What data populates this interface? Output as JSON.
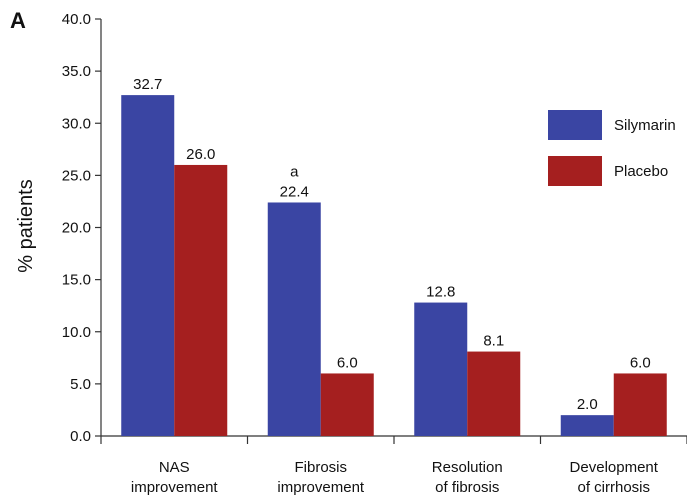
{
  "panel_label": "A",
  "chart_data": {
    "type": "bar",
    "title": "",
    "xlabel": "",
    "ylabel": "% patients",
    "ylim": [
      0,
      40
    ],
    "yticks": [
      "0.0",
      "5.0",
      "10.0",
      "15.0",
      "20.0",
      "25.0",
      "30.0",
      "35.0",
      "40.0"
    ],
    "categories": [
      [
        "NAS",
        "improvement"
      ],
      [
        "Fibrosis",
        "improvement"
      ],
      [
        "Resolution",
        "of fibrosis"
      ],
      [
        "Development",
        "of cirrhosis"
      ]
    ],
    "series": [
      {
        "name": "Silymarin",
        "color": "#3a45a3",
        "values": [
          32.7,
          22.4,
          12.8,
          2.0
        ],
        "labels": [
          "32.7",
          "22.4",
          "12.8",
          "2.0"
        ]
      },
      {
        "name": "Placebo",
        "color": "#a51f1f",
        "values": [
          26.0,
          6.0,
          8.1,
          6.0
        ],
        "labels": [
          "26.0",
          "6.0",
          "8.1",
          "6.0"
        ]
      }
    ],
    "annotations": [
      {
        "series": 0,
        "category": 1,
        "text": "a"
      }
    ],
    "grid": false,
    "legend_position": "top-right"
  }
}
